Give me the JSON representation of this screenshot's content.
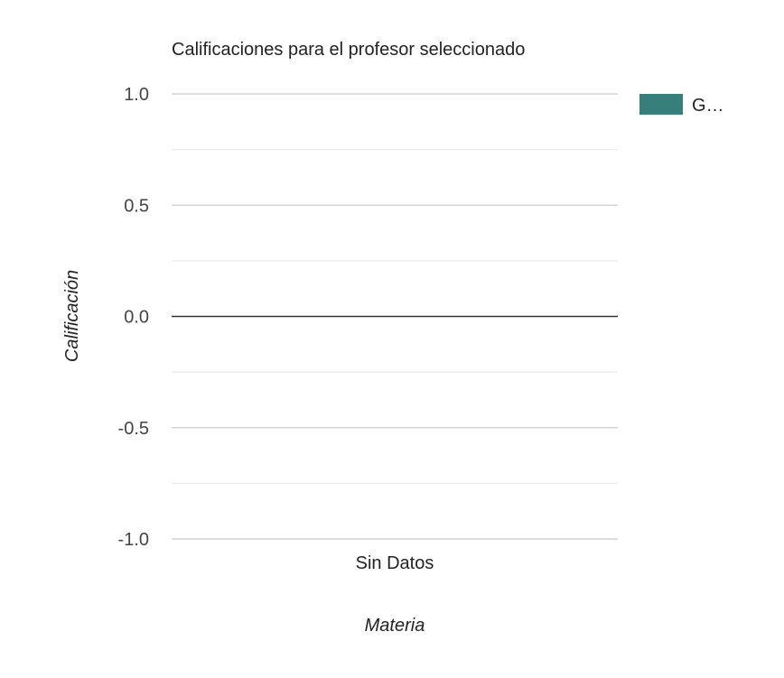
{
  "chart_data": {
    "type": "bar",
    "title": "Calificaciones para el profesor seleccionado",
    "xlabel": "Materia",
    "ylabel": "Calificación",
    "categories": [
      "Sin Datos"
    ],
    "series": [
      {
        "name": "G…",
        "color": "#367f7b",
        "values": [
          0
        ]
      }
    ],
    "ylim": [
      -1,
      1
    ],
    "y_ticks": [
      {
        "value": 1.0,
        "label": "1.0"
      },
      {
        "value": 0.5,
        "label": "0.5"
      },
      {
        "value": 0.0,
        "label": "0.0"
      },
      {
        "value": -0.5,
        "label": "-0.5"
      },
      {
        "value": -1.0,
        "label": "-1.0"
      }
    ],
    "minor_gridlines": [
      0.75,
      0.25,
      -0.25,
      -0.75
    ],
    "grid": true,
    "legend_position": "right",
    "colors": {
      "major_grid": "#cccccc",
      "minor_grid": "#ebebeb",
      "baseline": "#333333",
      "text": "#222222",
      "tick_text": "#444444"
    }
  }
}
